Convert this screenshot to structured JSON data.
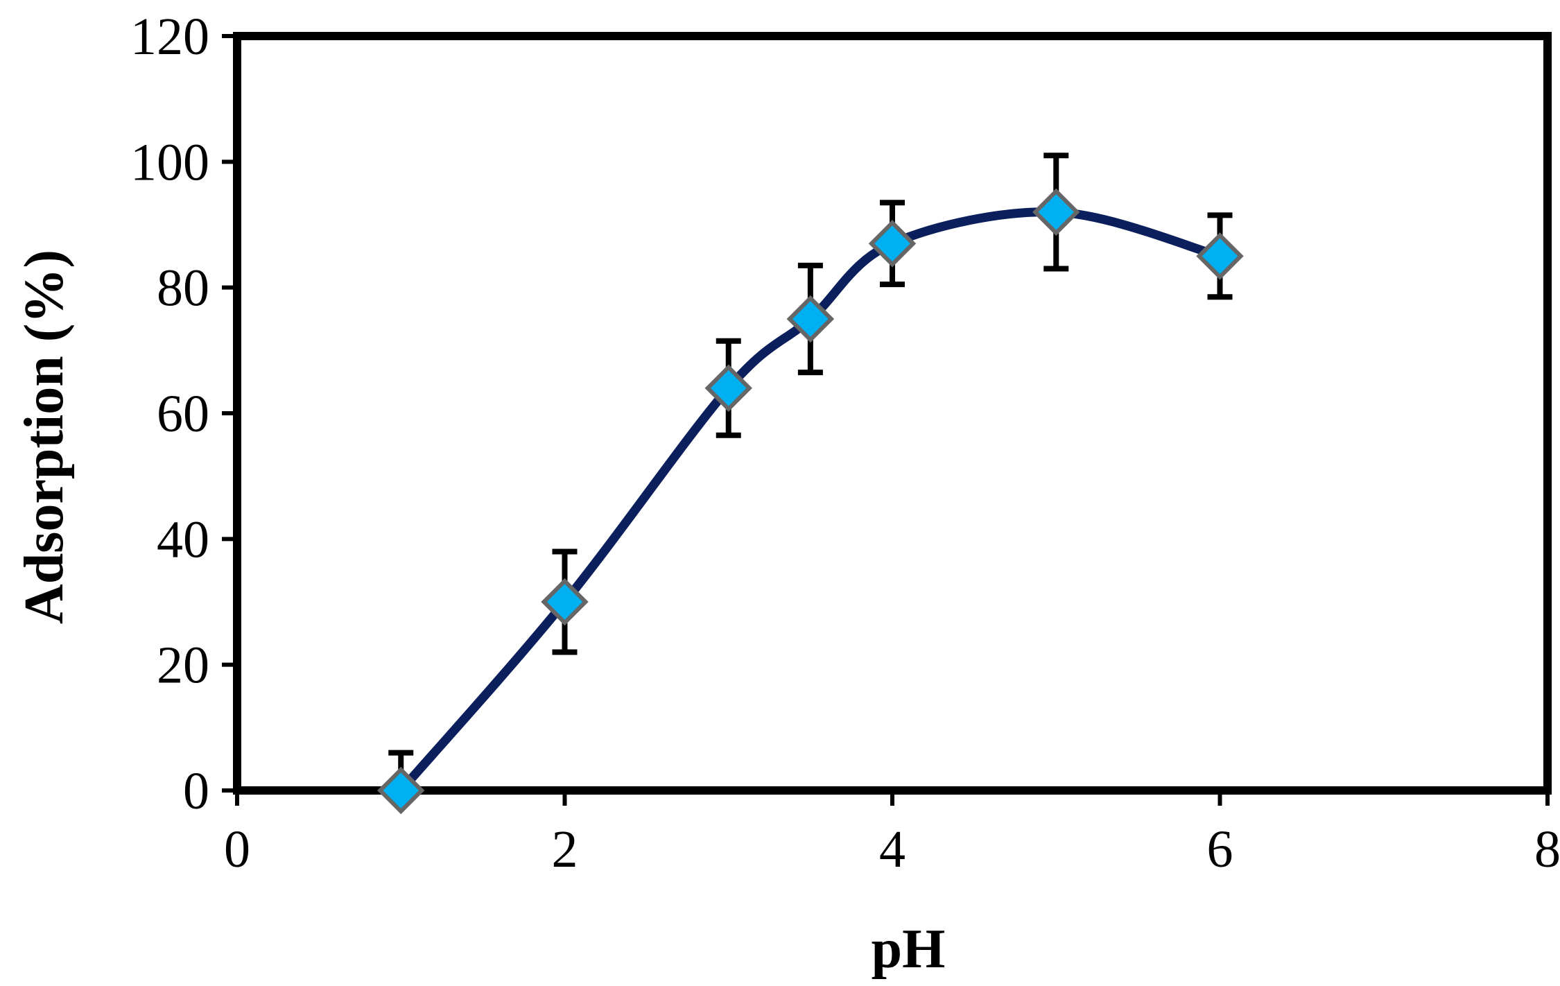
{
  "chart_data": {
    "type": "scatter",
    "title": "",
    "xlabel": "pH",
    "ylabel": "Adsorption (%)",
    "xlim": [
      0,
      8
    ],
    "ylim": [
      0,
      120
    ],
    "xticks": [
      0,
      2,
      4,
      6,
      8
    ],
    "yticks": [
      0,
      20,
      40,
      60,
      80,
      100,
      120
    ],
    "grid": false,
    "legend": "none",
    "smooth_line": true,
    "series": [
      {
        "x": [
          1,
          2,
          3,
          3.5,
          4,
          5,
          6
        ],
        "y": [
          0,
          30,
          64,
          75,
          87,
          92,
          85
        ],
        "error": [
          6,
          8,
          7.5,
          8.5,
          6.5,
          9,
          6.5
        ],
        "marker": "diamond",
        "marker_color": "#00b0f0",
        "marker_edge_color": "#666666",
        "line_color": "#0b1f5c",
        "errorbar_color": "#000000"
      }
    ]
  }
}
